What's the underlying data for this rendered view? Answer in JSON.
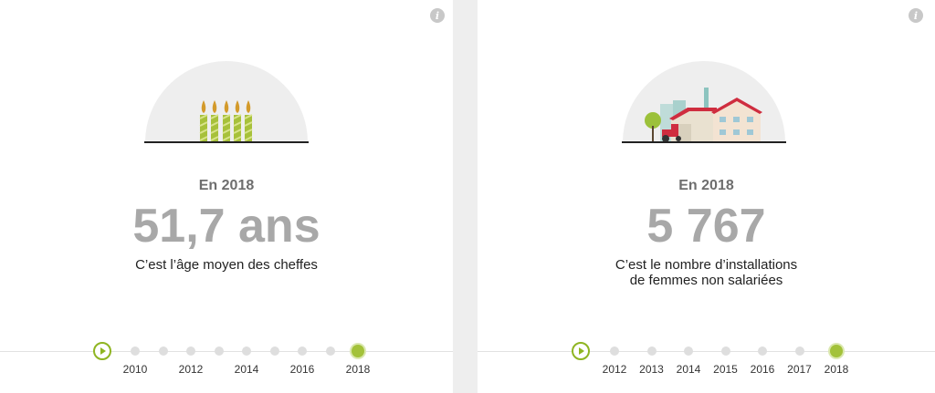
{
  "panels": [
    {
      "year_label": "En 2018",
      "value": "51,7 ans",
      "caption": [
        "C’est l’âge moyen des cheffes"
      ],
      "illustration": "candles-icon",
      "timeline": {
        "labels": [
          "2010",
          "2012",
          "2014",
          "2016",
          "2018"
        ],
        "dot_count": 9,
        "active": "2018"
      }
    },
    {
      "year_label": "En 2018",
      "value": "5 767",
      "caption": [
        "C’est le nombre d’installations",
        "de femmes non salariées"
      ],
      "illustration": "farm-icon",
      "timeline": {
        "labels": [
          "2012",
          "2013",
          "2014",
          "2015",
          "2016",
          "2017",
          "2018"
        ],
        "dot_count": 7,
        "active": "2018"
      }
    }
  ],
  "colors": {
    "accent": "#8fb522",
    "active_dot": "#a3c23a",
    "value": "#a8a8a8",
    "year": "#6e6e6e"
  }
}
